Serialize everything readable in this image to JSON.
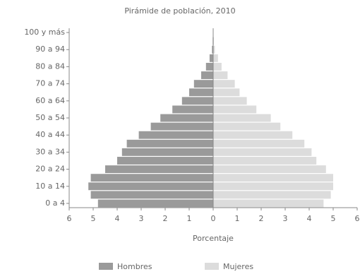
{
  "chart_data": {
    "type": "pyramid",
    "title": "Pirámide de población, 2010",
    "x_label": "Porcentaje",
    "categories": [
      "0 a 4",
      null,
      "10 a 14",
      null,
      "20 a 24",
      null,
      "30 a 34",
      null,
      "40 a 44",
      null,
      "50 a 54",
      null,
      "60 a 64",
      null,
      "70 a 74",
      null,
      "80 a 84",
      null,
      "90 a 94",
      null,
      "100 y más"
    ],
    "series": [
      {
        "name": "Hombres",
        "color": "#9a9a9a",
        "values": [
          -4.8,
          -5.1,
          -5.2,
          -5.1,
          -4.5,
          -4.0,
          -3.8,
          -3.6,
          -3.1,
          -2.6,
          -2.2,
          -1.7,
          -1.3,
          -1.0,
          -0.8,
          -0.5,
          -0.3,
          -0.15,
          -0.05,
          -0.02,
          -0.01
        ]
      },
      {
        "name": "Mujeres",
        "color": "#dcdcdc",
        "values": [
          4.6,
          4.9,
          5.0,
          5.0,
          4.7,
          4.3,
          4.1,
          3.8,
          3.3,
          2.8,
          2.4,
          1.8,
          1.4,
          1.1,
          0.9,
          0.6,
          0.35,
          0.2,
          0.07,
          0.03,
          0.01
        ]
      }
    ],
    "xlim": [
      -6,
      6
    ],
    "xticks": [
      {
        "value": -6,
        "label": "6"
      },
      {
        "value": -5,
        "label": "5"
      },
      {
        "value": -4,
        "label": "4"
      },
      {
        "value": -3,
        "label": "3"
      },
      {
        "value": -2,
        "label": "2"
      },
      {
        "value": -1,
        "label": "1"
      },
      0,
      1,
      2,
      3,
      4,
      5,
      6
    ],
    "legend": "bottom"
  }
}
